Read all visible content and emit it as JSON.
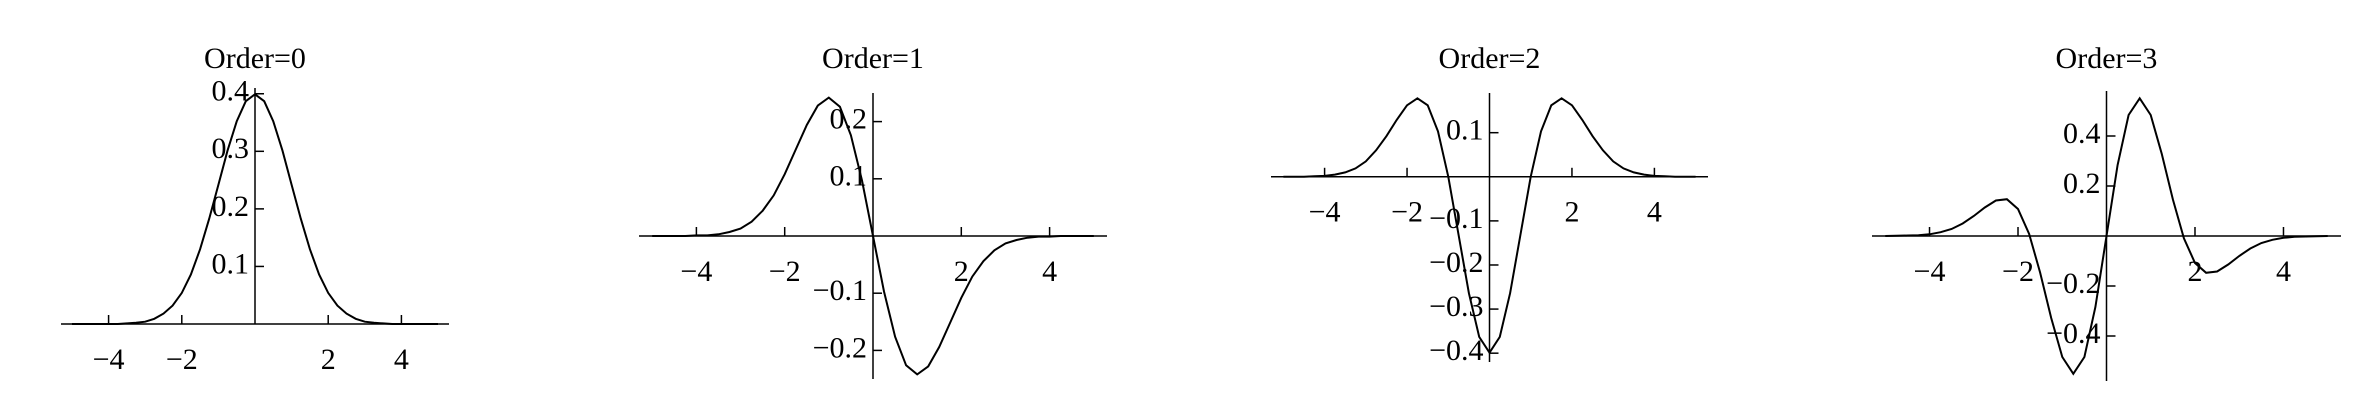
{
  "chart_data": [
    {
      "type": "line",
      "title": "Order=0",
      "color": "#000000",
      "x": [
        -5,
        -4.75,
        -4.5,
        -4.25,
        -4,
        -3.75,
        -3.5,
        -3.25,
        -3,
        -2.75,
        -2.5,
        -2.25,
        -2,
        -1.75,
        -1.5,
        -1.25,
        -1,
        -0.75,
        -0.5,
        -0.25,
        0,
        0.25,
        0.5,
        0.75,
        1,
        1.25,
        1.5,
        1.75,
        2,
        2.25,
        2.5,
        2.75,
        3,
        3.25,
        3.5,
        3.75,
        4,
        4.25,
        4.5,
        4.75,
        5
      ],
      "values": [
        0,
        0,
        0,
        0,
        0,
        0,
        0.001,
        0.002,
        0.004,
        0.009,
        0.018,
        0.032,
        0.054,
        0.086,
        0.13,
        0.183,
        0.242,
        0.301,
        0.352,
        0.387,
        0.399,
        0.387,
        0.352,
        0.301,
        0.242,
        0.183,
        0.13,
        0.086,
        0.054,
        0.032,
        0.018,
        0.009,
        0.004,
        0.002,
        0.001,
        0,
        0,
        0,
        0,
        0,
        0
      ],
      "xlim": [
        -5.3,
        5.3
      ],
      "ylim": [
        0,
        0.41
      ],
      "xticks": [
        -4,
        -2,
        2,
        4
      ],
      "yticks": [
        0.1,
        0.2,
        0.3,
        0.4
      ]
    },
    {
      "type": "line",
      "title": "Order=1",
      "color": "#000000",
      "x": [
        -5,
        -4.75,
        -4.5,
        -4.25,
        -4,
        -3.75,
        -3.5,
        -3.25,
        -3,
        -2.75,
        -2.5,
        -2.25,
        -2,
        -1.75,
        -1.5,
        -1.25,
        -1,
        -0.75,
        -0.5,
        -0.25,
        0,
        0.25,
        0.5,
        0.75,
        1,
        1.25,
        1.5,
        1.75,
        2,
        2.25,
        2.5,
        2.75,
        3,
        3.25,
        3.5,
        3.75,
        4,
        4.25,
        4.5,
        4.75,
        5
      ],
      "values": [
        0,
        0,
        0,
        0,
        0.001,
        0.001,
        0.003,
        0.007,
        0.013,
        0.025,
        0.044,
        0.071,
        0.108,
        0.151,
        0.194,
        0.228,
        0.242,
        0.226,
        0.176,
        0.097,
        0,
        -0.097,
        -0.176,
        -0.226,
        -0.242,
        -0.228,
        -0.194,
        -0.151,
        -0.108,
        -0.071,
        -0.044,
        -0.025,
        -0.013,
        -0.007,
        -0.003,
        -0.001,
        -0.001,
        0,
        0,
        0,
        0
      ],
      "xlim": [
        -5.3,
        5.3
      ],
      "ylim": [
        -0.25,
        0.25
      ],
      "xticks": [
        -4,
        -2,
        2,
        4
      ],
      "yticks": [
        -0.2,
        -0.1,
        0.1,
        0.2
      ]
    },
    {
      "type": "line",
      "title": "Order=2",
      "color": "#000000",
      "x": [
        -5,
        -4.75,
        -4.5,
        -4.25,
        -4,
        -3.75,
        -3.5,
        -3.25,
        -3,
        -2.75,
        -2.5,
        -2.25,
        -2,
        -1.75,
        -1.5,
        -1.25,
        -1,
        -0.75,
        -0.5,
        -0.25,
        0,
        0.25,
        0.5,
        0.75,
        1,
        1.25,
        1.5,
        1.75,
        2,
        2.25,
        2.5,
        2.75,
        3,
        3.25,
        3.5,
        3.75,
        4,
        4.25,
        4.5,
        4.75,
        5
      ],
      "values": [
        0,
        0,
        0,
        0.001,
        0.002,
        0.005,
        0.01,
        0.019,
        0.035,
        0.06,
        0.092,
        0.129,
        0.162,
        0.178,
        0.162,
        0.103,
        0,
        -0.132,
        -0.264,
        -0.363,
        -0.399,
        -0.363,
        -0.264,
        -0.132,
        0,
        0.103,
        0.162,
        0.178,
        0.162,
        0.129,
        0.092,
        0.06,
        0.035,
        0.019,
        0.01,
        0.005,
        0.002,
        0.001,
        0,
        0,
        0
      ],
      "xlim": [
        -5.3,
        5.3
      ],
      "ylim": [
        -0.42,
        0.19
      ],
      "xticks": [
        -4,
        -2,
        2,
        4
      ],
      "yticks": [
        -0.4,
        -0.3,
        -0.2,
        -0.1,
        0.1
      ]
    },
    {
      "type": "line",
      "title": "Order=3",
      "color": "#000000",
      "x": [
        -5,
        -4.75,
        -4.5,
        -4.25,
        -4,
        -3.75,
        -3.5,
        -3.25,
        -3,
        -2.75,
        -2.5,
        -2.25,
        -2,
        -1.75,
        -1.5,
        -1.25,
        -1,
        -0.75,
        -0.5,
        -0.25,
        0,
        0.25,
        0.5,
        0.75,
        1,
        1.25,
        1.5,
        1.75,
        2,
        2.25,
        2.5,
        2.75,
        3,
        3.25,
        3.5,
        3.75,
        4,
        4.25,
        4.5,
        4.75,
        5
      ],
      "values": [
        0,
        0.001,
        0.002,
        0.003,
        0.007,
        0.015,
        0.028,
        0.05,
        0.08,
        0.114,
        0.142,
        0.147,
        0.108,
        0.009,
        -0.146,
        -0.328,
        -0.484,
        -0.551,
        -0.484,
        -0.284,
        0,
        0.284,
        0.484,
        0.551,
        0.484,
        0.328,
        0.146,
        -0.009,
        -0.108,
        -0.147,
        -0.142,
        -0.114,
        -0.08,
        -0.05,
        -0.028,
        -0.015,
        -0.007,
        -0.003,
        -0.002,
        -0.001,
        0
      ],
      "xlim": [
        -5.3,
        5.3
      ],
      "ylim": [
        -0.58,
        0.58
      ],
      "xticks": [
        -4,
        -2,
        2,
        4
      ],
      "yticks": [
        -0.4,
        -0.2,
        0.2,
        0.4
      ]
    }
  ]
}
